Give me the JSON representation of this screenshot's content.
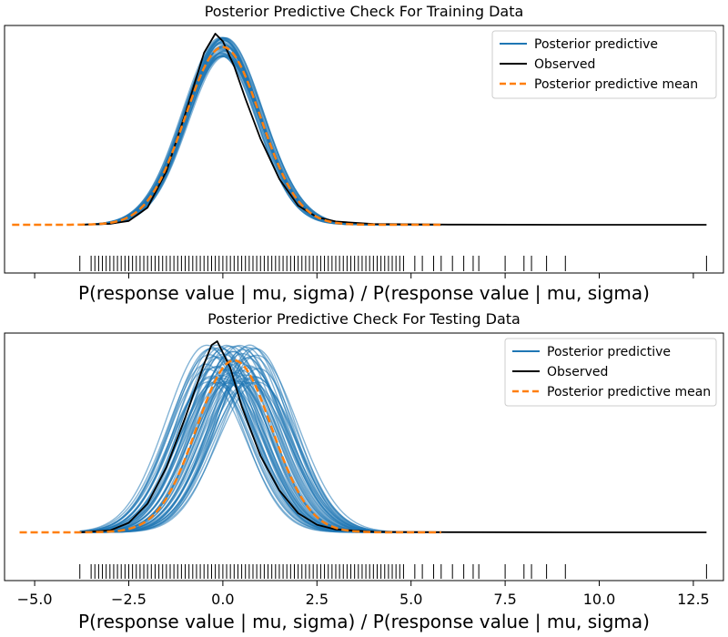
{
  "chart_data": [
    {
      "type": "line",
      "title": "Posterior Predictive Check For Training Data",
      "xlabel": "P(response value | mu, sigma) / P(response value | mu, sigma)",
      "ylabel": "",
      "xlim": [
        -5.8,
        13.3
      ],
      "x_ticks_shown": false,
      "legend": {
        "placement": "top-right",
        "entries": [
          {
            "label": "Posterior predictive",
            "color": "#1f77b4",
            "style": "solid"
          },
          {
            "label": "Observed",
            "color": "#000000",
            "style": "solid"
          },
          {
            "label": "Posterior predictive mean",
            "color": "#ff7f0e",
            "style": "dashed"
          }
        ]
      },
      "series": [
        {
          "name": "Posterior predictive",
          "color": "#1f77b4",
          "band": {
            "x_center": 0.0,
            "sd": 1.0,
            "peak_min": 0.88,
            "peak_max": 0.98,
            "shift_spread": 0.06,
            "count": 40
          },
          "x_range": [
            -3.8,
            5.8
          ]
        },
        {
          "name": "Observed",
          "color": "#000000",
          "x": [
            -3.8,
            -3.0,
            -2.5,
            -2.0,
            -1.5,
            -1.0,
            -0.5,
            -0.2,
            0.0,
            0.3,
            0.6,
            1.0,
            1.5,
            2.0,
            2.5,
            3.0,
            4.0,
            6.0,
            9.0,
            12.85
          ],
          "y": [
            0.0,
            0.005,
            0.02,
            0.09,
            0.28,
            0.58,
            0.9,
            1.0,
            0.96,
            0.83,
            0.66,
            0.45,
            0.24,
            0.1,
            0.04,
            0.017,
            0.004,
            0.001,
            0.0,
            0.0
          ]
        },
        {
          "name": "Posterior predictive mean",
          "color": "#ff7f0e",
          "dashed": true,
          "gaussian": {
            "mu": 0.0,
            "sd": 1.0,
            "peak": 0.93
          },
          "x_range": [
            -5.6,
            5.8
          ]
        }
      ],
      "rug": [
        -3.8,
        -3.5,
        -3.4,
        -3.3,
        -3.2,
        -3.1,
        -3.0,
        -2.9,
        -2.8,
        -2.7,
        -2.6,
        -2.5,
        -2.4,
        -2.3,
        -2.2,
        -2.1,
        -2.0,
        -1.9,
        -1.8,
        -1.7,
        -1.6,
        -1.5,
        -1.4,
        -1.3,
        -1.2,
        -1.1,
        -1.0,
        -0.9,
        -0.8,
        -0.7,
        -0.6,
        -0.5,
        -0.4,
        -0.3,
        -0.2,
        -0.1,
        0.0,
        0.1,
        0.2,
        0.3,
        0.4,
        0.5,
        0.6,
        0.7,
        0.8,
        0.9,
        1.0,
        1.1,
        1.2,
        1.3,
        1.4,
        1.5,
        1.6,
        1.7,
        1.8,
        1.9,
        2.0,
        2.1,
        2.2,
        2.3,
        2.4,
        2.5,
        2.6,
        2.7,
        2.8,
        2.9,
        3.0,
        3.1,
        3.2,
        3.3,
        3.4,
        3.5,
        3.6,
        3.7,
        3.8,
        3.9,
        4.0,
        4.1,
        4.2,
        4.3,
        4.4,
        4.5,
        4.6,
        4.7,
        4.8,
        5.1,
        5.3,
        5.6,
        5.8,
        6.1,
        6.4,
        6.65,
        6.8,
        7.5,
        8.0,
        8.2,
        8.6,
        9.1,
        12.85
      ]
    },
    {
      "type": "line",
      "title": "Posterior Predictive Check For Testing Data",
      "xlabel": "P(response value | mu, sigma) / P(response value | mu, sigma)",
      "ylabel": "",
      "xlim": [
        -5.8,
        13.3
      ],
      "x_ticks": [
        -5.0,
        -2.5,
        0.0,
        2.5,
        5.0,
        7.5,
        10.0,
        12.5
      ],
      "x_tick_labels": [
        "−5.0",
        "−2.5",
        "0.0",
        "2.5",
        "5.0",
        "7.5",
        "10.0",
        "12.5"
      ],
      "legend": {
        "placement": "top-right",
        "entries": [
          {
            "label": "Posterior predictive",
            "color": "#1f77b4",
            "style": "solid"
          },
          {
            "label": "Observed",
            "color": "#000000",
            "style": "solid"
          },
          {
            "label": "Posterior predictive mean",
            "color": "#ff7f0e",
            "style": "dashed"
          }
        ]
      },
      "series": [
        {
          "name": "Posterior predictive",
          "color": "#1f77b4",
          "band": {
            "x_center": 0.25,
            "sd": 1.05,
            "peak_min": 0.78,
            "peak_max": 0.98,
            "shift_spread": 0.7,
            "count": 60
          },
          "x_range": [
            -3.8,
            5.8
          ]
        },
        {
          "name": "Observed",
          "color": "#000000",
          "x": [
            -3.8,
            -3.0,
            -2.5,
            -2.0,
            -1.5,
            -1.0,
            -0.5,
            -0.3,
            -0.15,
            0.2,
            0.5,
            1.0,
            1.5,
            2.0,
            2.5,
            3.0,
            4.0,
            6.0,
            9.0,
            12.85
          ],
          "y": [
            0.0,
            0.01,
            0.05,
            0.15,
            0.34,
            0.6,
            0.88,
            0.98,
            1.0,
            0.86,
            0.66,
            0.4,
            0.22,
            0.1,
            0.04,
            0.015,
            0.003,
            0.001,
            0.0,
            0.0
          ]
        },
        {
          "name": "Posterior predictive mean",
          "color": "#ff7f0e",
          "dashed": true,
          "gaussian": {
            "mu": 0.3,
            "sd": 1.0,
            "peak": 0.9
          },
          "x_range": [
            -5.4,
            5.8
          ]
        }
      ],
      "rug": [
        -3.8,
        -3.5,
        -3.4,
        -3.3,
        -3.2,
        -3.1,
        -3.0,
        -2.9,
        -2.8,
        -2.7,
        -2.6,
        -2.5,
        -2.4,
        -2.3,
        -2.2,
        -2.1,
        -2.0,
        -1.9,
        -1.8,
        -1.7,
        -1.6,
        -1.5,
        -1.4,
        -1.3,
        -1.2,
        -1.1,
        -1.0,
        -0.9,
        -0.8,
        -0.7,
        -0.6,
        -0.5,
        -0.4,
        -0.3,
        -0.2,
        -0.1,
        0.0,
        0.1,
        0.2,
        0.3,
        0.4,
        0.5,
        0.6,
        0.7,
        0.8,
        0.9,
        1.0,
        1.1,
        1.2,
        1.3,
        1.4,
        1.5,
        1.6,
        1.7,
        1.8,
        1.9,
        2.0,
        2.1,
        2.2,
        2.3,
        2.4,
        2.5,
        2.6,
        2.7,
        2.8,
        2.9,
        3.0,
        3.1,
        3.2,
        3.3,
        3.4,
        3.5,
        3.6,
        3.7,
        3.8,
        3.9,
        4.0,
        4.1,
        4.2,
        4.3,
        4.4,
        4.5,
        4.6,
        4.7,
        4.8,
        5.1,
        5.3,
        5.6,
        5.8,
        6.1,
        6.4,
        6.65,
        6.8,
        7.5,
        8.0,
        8.2,
        8.6,
        9.1,
        12.85
      ]
    }
  ]
}
